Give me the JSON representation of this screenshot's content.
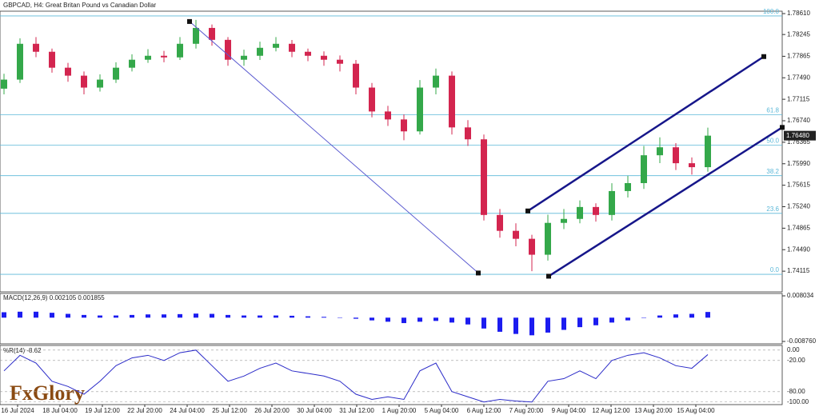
{
  "chart_data": {
    "type": "candlestick",
    "title": "GBPCAD, H4:  Great Britan Pound vs Canadian Dollar",
    "brand": "FxGlory",
    "up_color": "#34a84a",
    "down_color": "#d3254f",
    "open": [
      1.773,
      1.77458,
      1.78083,
      1.77944,
      1.77666,
      1.77527,
      1.77319,
      1.77458,
      1.77666,
      1.77805,
      1.77874,
      1.77846,
      1.78083,
      1.7836,
      1.78152,
      1.77805,
      1.77874,
      1.78013,
      1.78083,
      1.77944,
      1.77874,
      1.77805,
      1.77735,
      1.77319,
      1.76902,
      1.76763,
      1.76555,
      1.77319,
      1.77527,
      1.76624,
      1.76416,
      1.75096,
      1.74819,
      1.7468,
      1.74402,
      1.74958,
      1.75027,
      1.75235,
      1.75096,
      1.75513,
      1.75652,
      1.76138,
      1.76277,
      1.75999,
      1.7593
    ],
    "high": [
      1.7756,
      1.7818,
      1.782,
      1.78,
      1.7775,
      1.776,
      1.7755,
      1.7776,
      1.779,
      1.7799,
      1.7796,
      1.782,
      1.785,
      1.7842,
      1.782,
      1.7798,
      1.7812,
      1.782,
      1.7815,
      1.78,
      1.7795,
      1.7788,
      1.778,
      1.774,
      1.77,
      1.7685,
      1.7745,
      1.7765,
      1.776,
      1.7675,
      1.765,
      1.752,
      1.7495,
      1.7475,
      1.751,
      1.752,
      1.7535,
      1.753,
      1.7565,
      1.7578,
      1.763,
      1.7645,
      1.7635,
      1.761,
      1.7662
    ],
    "low": [
      1.772,
      1.774,
      1.7785,
      1.7758,
      1.7742,
      1.772,
      1.7725,
      1.774,
      1.776,
      1.7775,
      1.7776,
      1.778,
      1.78,
      1.7805,
      1.777,
      1.777,
      1.778,
      1.7795,
      1.7785,
      1.7778,
      1.777,
      1.776,
      1.772,
      1.768,
      1.7665,
      1.764,
      1.765,
      1.772,
      1.765,
      1.763,
      1.75,
      1.747,
      1.7455,
      1.74115,
      1.743,
      1.7485,
      1.7495,
      1.7498,
      1.75,
      1.754,
      1.7555,
      1.76,
      1.7588,
      1.758,
      1.7585
    ],
    "close": [
      1.77458,
      1.78083,
      1.77944,
      1.77666,
      1.77527,
      1.77319,
      1.77458,
      1.77666,
      1.77805,
      1.77874,
      1.77846,
      1.78083,
      1.7836,
      1.78152,
      1.77805,
      1.77874,
      1.78013,
      1.78083,
      1.77944,
      1.77874,
      1.77805,
      1.77735,
      1.77319,
      1.76902,
      1.76763,
      1.76555,
      1.77319,
      1.77527,
      1.76624,
      1.76416,
      1.75096,
      1.74819,
      1.7468,
      1.74402,
      1.74958,
      1.75027,
      1.75235,
      1.75096,
      1.75513,
      1.75652,
      1.76138,
      1.76277,
      1.75999,
      1.7593,
      1.7648
    ],
    "last_price": {
      "value": 1.7648,
      "label": "1.76480"
    },
    "xlim": [
      -0.25,
      48.65
    ],
    "xticks": [
      {
        "value": 0.85,
        "label": "16 Jul 2024"
      },
      {
        "value": 3.5,
        "label": "18 Jul 04:00"
      },
      {
        "value": 6.15,
        "label": "19 Jul 12:00"
      },
      {
        "value": 8.8,
        "label": "22 Jul 20:00"
      },
      {
        "value": 11.45,
        "label": "24 Jul 04:00"
      },
      {
        "value": 14.1,
        "label": "25 Jul 12:00"
      },
      {
        "value": 16.75,
        "label": "26 Jul 20:00"
      },
      {
        "value": 19.4,
        "label": "30 Jul 04:00"
      },
      {
        "value": 22.05,
        "label": "31 Jul 12:00"
      },
      {
        "value": 24.7,
        "label": "1 Aug 20:00"
      },
      {
        "value": 27.35,
        "label": "5 Aug 04:00"
      },
      {
        "value": 30,
        "label": "6 Aug 12:00"
      },
      {
        "value": 32.65,
        "label": "7 Aug 20:00"
      },
      {
        "value": 35.3,
        "label": "9 Aug 04:00"
      },
      {
        "value": 37.95,
        "label": "12 Aug 12:00"
      },
      {
        "value": 40.6,
        "label": "13 Aug 20:00"
      },
      {
        "value": 43.25,
        "label": "15 Aug 04:00"
      }
    ],
    "ylim": [
      1.73754,
      1.78652
    ],
    "yticks": [
      {
        "value": 1.7861,
        "label": "1.78610"
      },
      1.78245,
      1.77865,
      {
        "value": 1.7749,
        "label": "1.77490"
      },
      1.77115,
      {
        "value": 1.7674,
        "label": "1.76740"
      },
      1.76365,
      {
        "value": 1.7599,
        "label": "1.75990"
      },
      1.75615,
      {
        "value": 1.7524,
        "label": "1.75240"
      },
      1.74865,
      {
        "value": 1.7449,
        "label": "1.74490"
      },
      1.74115
    ],
    "fib_color": "#5bb8d8",
    "fib_levels": [
      {
        "value": 1.78569,
        "label": "100.0"
      },
      {
        "value": 1.76847,
        "label": "61.8"
      },
      {
        "value": 1.76315,
        "label": "50.0"
      },
      {
        "value": 1.75782,
        "label": "38.2"
      },
      {
        "value": 1.75124,
        "label": "23.6"
      },
      {
        "value": 1.7406,
        "label": "0.0"
      }
    ],
    "lines": [
      {
        "color": "#5a5ad0",
        "x": [
          11.6,
          29.65
        ],
        "y": [
          1.78472,
          1.74083
        ]
      },
      {
        "color": "#16168a",
        "x": [
          32.75,
          47.5
        ],
        "y": [
          1.75166,
          1.7786
        ]
      },
      {
        "color": "#16168a",
        "x": [
          34.05,
          48.65
        ],
        "y": [
          1.74027,
          1.76624
        ]
      }
    ],
    "macd": {
      "label": "MACD(12,26,9) 0.002105 0.001855",
      "color": "#1c1cf0",
      "ylim": [
        -0.00876,
        0.008034
      ],
      "yticks": [
        0.008034,
        {
          "value": -0.00876,
          "label": "-0.008760"
        }
      ],
      "values": [
        0.002,
        0.0022,
        0.0022,
        0.0018,
        0.0014,
        0.001,
        0.0008,
        0.0008,
        0.001,
        0.0012,
        0.0012,
        0.0013,
        0.0015,
        0.0014,
        0.001,
        0.0008,
        0.0008,
        0.0008,
        0.0007,
        0.0005,
        0.0003,
        0.0001,
        -0.0004,
        -0.001,
        -0.0015,
        -0.002,
        -0.0015,
        -0.0012,
        -0.0018,
        -0.0025,
        -0.004,
        -0.0052,
        -0.006,
        -0.0065,
        -0.0055,
        -0.0045,
        -0.0035,
        -0.0028,
        -0.0018,
        -0.001,
        0.0,
        0.0008,
        0.0012,
        0.0014,
        0.0021
      ]
    },
    "williams_r": {
      "label": "%R(14) -8.62",
      "color": "#2a2ac8",
      "ylim": [
        -105,
        9
      ],
      "yticks": [
        {
          "value": 0,
          "label": "0.00"
        },
        {
          "value": -20,
          "label": "-20.00"
        },
        {
          "value": -80,
          "label": "-80.00"
        },
        {
          "value": -100,
          "label": "-100.00"
        }
      ],
      "values": [
        -40,
        -10,
        -25,
        -60,
        -70,
        -85,
        -60,
        -30,
        -15,
        -10,
        -20,
        -5,
        0,
        -30,
        -60,
        -50,
        -35,
        -25,
        -40,
        -45,
        -50,
        -60,
        -85,
        -95,
        -90,
        -95,
        -40,
        -25,
        -80,
        -90,
        -100,
        -95,
        -98,
        -100,
        -60,
        -55,
        -40,
        -55,
        -20,
        -10,
        -5,
        -15,
        -30,
        -35,
        -8.62
      ]
    }
  }
}
